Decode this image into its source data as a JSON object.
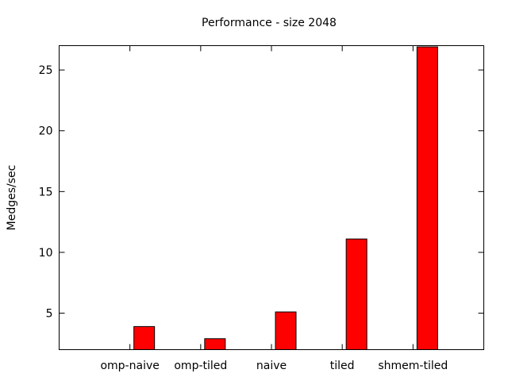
{
  "chart_data": {
    "type": "bar",
    "title": "Performance - size 2048",
    "xlabel": "",
    "ylabel": "Medges/sec",
    "categories": [
      "omp-naive",
      "omp-tiled",
      "naive",
      "tiled",
      "shmem-tiled"
    ],
    "values": [
      3.9,
      2.9,
      5.1,
      11.1,
      26.9
    ],
    "ylim": [
      2,
      27
    ],
    "yticks": [
      5,
      10,
      15,
      20,
      25
    ],
    "grid": false,
    "legend": "none",
    "bar_color": "#ff0000",
    "bar_edge_color": "#000000"
  }
}
